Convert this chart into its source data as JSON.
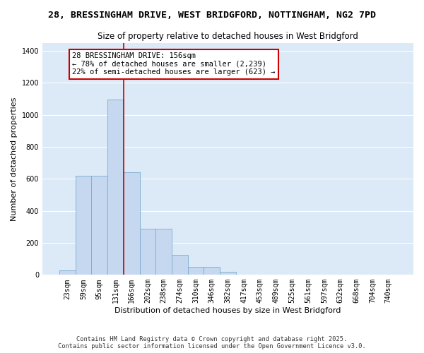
{
  "title_line1": "28, BRESSINGHAM DRIVE, WEST BRIDGFORD, NOTTINGHAM, NG2 7PD",
  "title_line2": "Size of property relative to detached houses in West Bridgford",
  "xlabel": "Distribution of detached houses by size in West Bridgford",
  "ylabel": "Number of detached properties",
  "bar_color": "#c5d8f0",
  "bar_edge_color": "#7aabce",
  "background_color": "#dce9f7",
  "fig_background_color": "#ffffff",
  "grid_color": "#ffffff",
  "categories": [
    "23sqm",
    "59sqm",
    "95sqm",
    "131sqm",
    "166sqm",
    "202sqm",
    "238sqm",
    "274sqm",
    "310sqm",
    "346sqm",
    "382sqm",
    "417sqm",
    "453sqm",
    "489sqm",
    "525sqm",
    "561sqm",
    "597sqm",
    "632sqm",
    "668sqm",
    "704sqm",
    "740sqm"
  ],
  "values": [
    30,
    620,
    620,
    1095,
    640,
    290,
    290,
    125,
    48,
    48,
    18,
    0,
    0,
    0,
    0,
    0,
    0,
    0,
    0,
    0,
    0
  ],
  "ylim": [
    0,
    1450
  ],
  "yticks": [
    0,
    200,
    400,
    600,
    800,
    1000,
    1200,
    1400
  ],
  "vline_color": "#cc0000",
  "annotation_title": "28 BRESSINGHAM DRIVE: 156sqm",
  "annotation_line1": "← 78% of detached houses are smaller (2,239)",
  "annotation_line2": "22% of semi-detached houses are larger (623) →",
  "annotation_box_color": "#ffffff",
  "annotation_box_edge": "#cc0000",
  "footer_line1": "Contains HM Land Registry data © Crown copyright and database right 2025.",
  "footer_line2": "Contains public sector information licensed under the Open Government Licence v3.0.",
  "title_fontsize": 9.5,
  "subtitle_fontsize": 8.5,
  "axis_label_fontsize": 8,
  "tick_fontsize": 7,
  "annotation_fontsize": 7.5
}
